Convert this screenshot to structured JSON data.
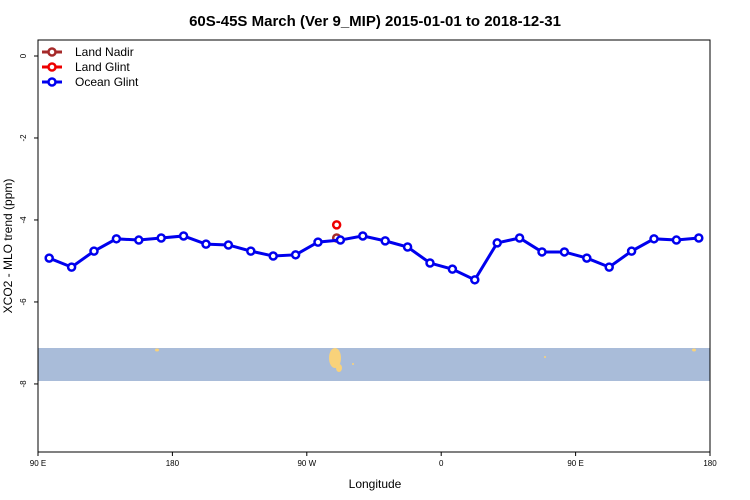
{
  "chart_data": {
    "type": "line",
    "title": "60S-45S March (Ver 9_MIP)   2015-01-01 to 2018-12-31",
    "x_label": "Longitude",
    "y_label": "XCO2 - MLO trend (ppm)",
    "xlim": [
      90,
      540
    ],
    "ylim": [
      -9.66,
      0.39
    ],
    "xticks": [
      {
        "value": 90,
        "label": "90 E"
      },
      180,
      {
        "value": 270,
        "label": "90 W"
      },
      {
        "value": 360,
        "label": "0"
      },
      {
        "value": 450,
        "label": "90 E"
      },
      {
        "value": 540,
        "label": "180"
      }
    ],
    "yticks": [
      0,
      -2,
      -4,
      -6,
      -8
    ],
    "legend": "top-left",
    "series": [
      {
        "name": "Land Nadir",
        "color": "#a52a2a",
        "x": [
          290
        ],
        "values": [
          -4.44
        ]
      },
      {
        "name": "Land Glint",
        "color": "#ee0000",
        "x": [
          290
        ],
        "values": [
          -4.12
        ]
      },
      {
        "name": "Ocean Glint",
        "color": "#0000ee",
        "x": [
          97.5,
          112.5,
          127.5,
          142.5,
          157.5,
          172.5,
          187.5,
          202.5,
          217.5,
          232.5,
          247.5,
          262.5,
          277.5,
          292.5,
          307.5,
          322.5,
          337.5,
          352.5,
          367.5,
          382.5,
          397.5,
          412.5,
          427.5,
          442.5,
          457.5,
          472.5,
          487.5,
          502.5,
          517.5,
          532.5
        ],
        "values": [
          -4.93,
          -5.15,
          -4.76,
          -4.46,
          -4.49,
          -4.44,
          -4.39,
          -4.59,
          -4.61,
          -4.76,
          -4.88,
          -4.85,
          -4.54,
          -4.49,
          -4.39,
          -4.51,
          -4.66,
          -5.05,
          -5.2,
          -5.46,
          -4.56,
          -4.44,
          -4.78,
          -4.78,
          -4.93,
          -5.15,
          -4.76,
          -4.46,
          -4.49,
          -4.44
        ]
      }
    ]
  }
}
